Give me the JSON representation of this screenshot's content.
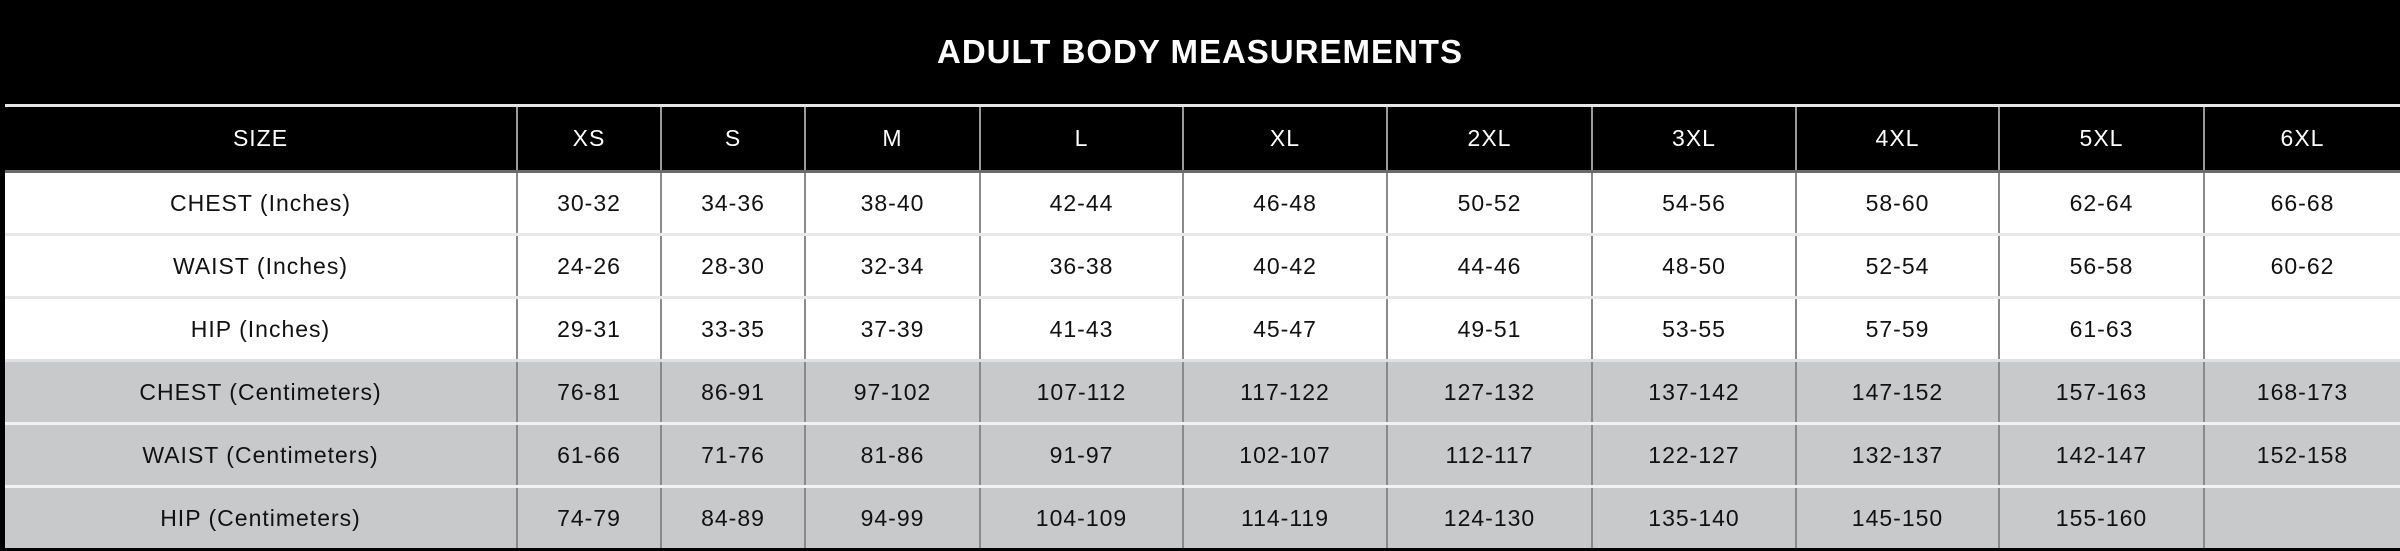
{
  "title": "ADULT BODY MEASUREMENTS",
  "colors": {
    "header_bg": "#000000",
    "header_text": "#ffffff",
    "inch_row_bg": "#ffffff",
    "cm_row_bg": "#c8c9cb"
  },
  "columns": [
    "SIZE",
    "XS",
    "S",
    "M",
    "L",
    "XL",
    "2XL",
    "3XL",
    "4XL",
    "5XL",
    "6XL"
  ],
  "rows": [
    {
      "label": "CHEST (Inches)",
      "values": [
        "30-32",
        "34-36",
        "38-40",
        "42-44",
        "46-48",
        "50-52",
        "54-56",
        "58-60",
        "62-64",
        "66-68"
      ]
    },
    {
      "label": "WAIST (Inches)",
      "values": [
        "24-26",
        "28-30",
        "32-34",
        "36-38",
        "40-42",
        "44-46",
        "48-50",
        "52-54",
        "56-58",
        "60-62"
      ]
    },
    {
      "label": "HIP (Inches)",
      "values": [
        "29-31",
        "33-35",
        "37-39",
        "41-43",
        "45-47",
        "49-51",
        "53-55",
        "57-59",
        "61-63",
        ""
      ]
    },
    {
      "label": "CHEST (Centimeters)",
      "values": [
        "76-81",
        "86-91",
        "97-102",
        "107-112",
        "117-122",
        "127-132",
        "137-142",
        "147-152",
        "157-163",
        "168-173"
      ]
    },
    {
      "label": "WAIST (Centimeters)",
      "values": [
        "61-66",
        "71-76",
        "81-86",
        "91-97",
        "102-107",
        "112-117",
        "122-127",
        "132-137",
        "142-147",
        "152-158"
      ]
    },
    {
      "label": "HIP (Centimeters)",
      "values": [
        "74-79",
        "84-89",
        "94-99",
        "104-109",
        "114-119",
        "124-130",
        "135-140",
        "145-150",
        "155-160",
        ""
      ]
    }
  ]
}
